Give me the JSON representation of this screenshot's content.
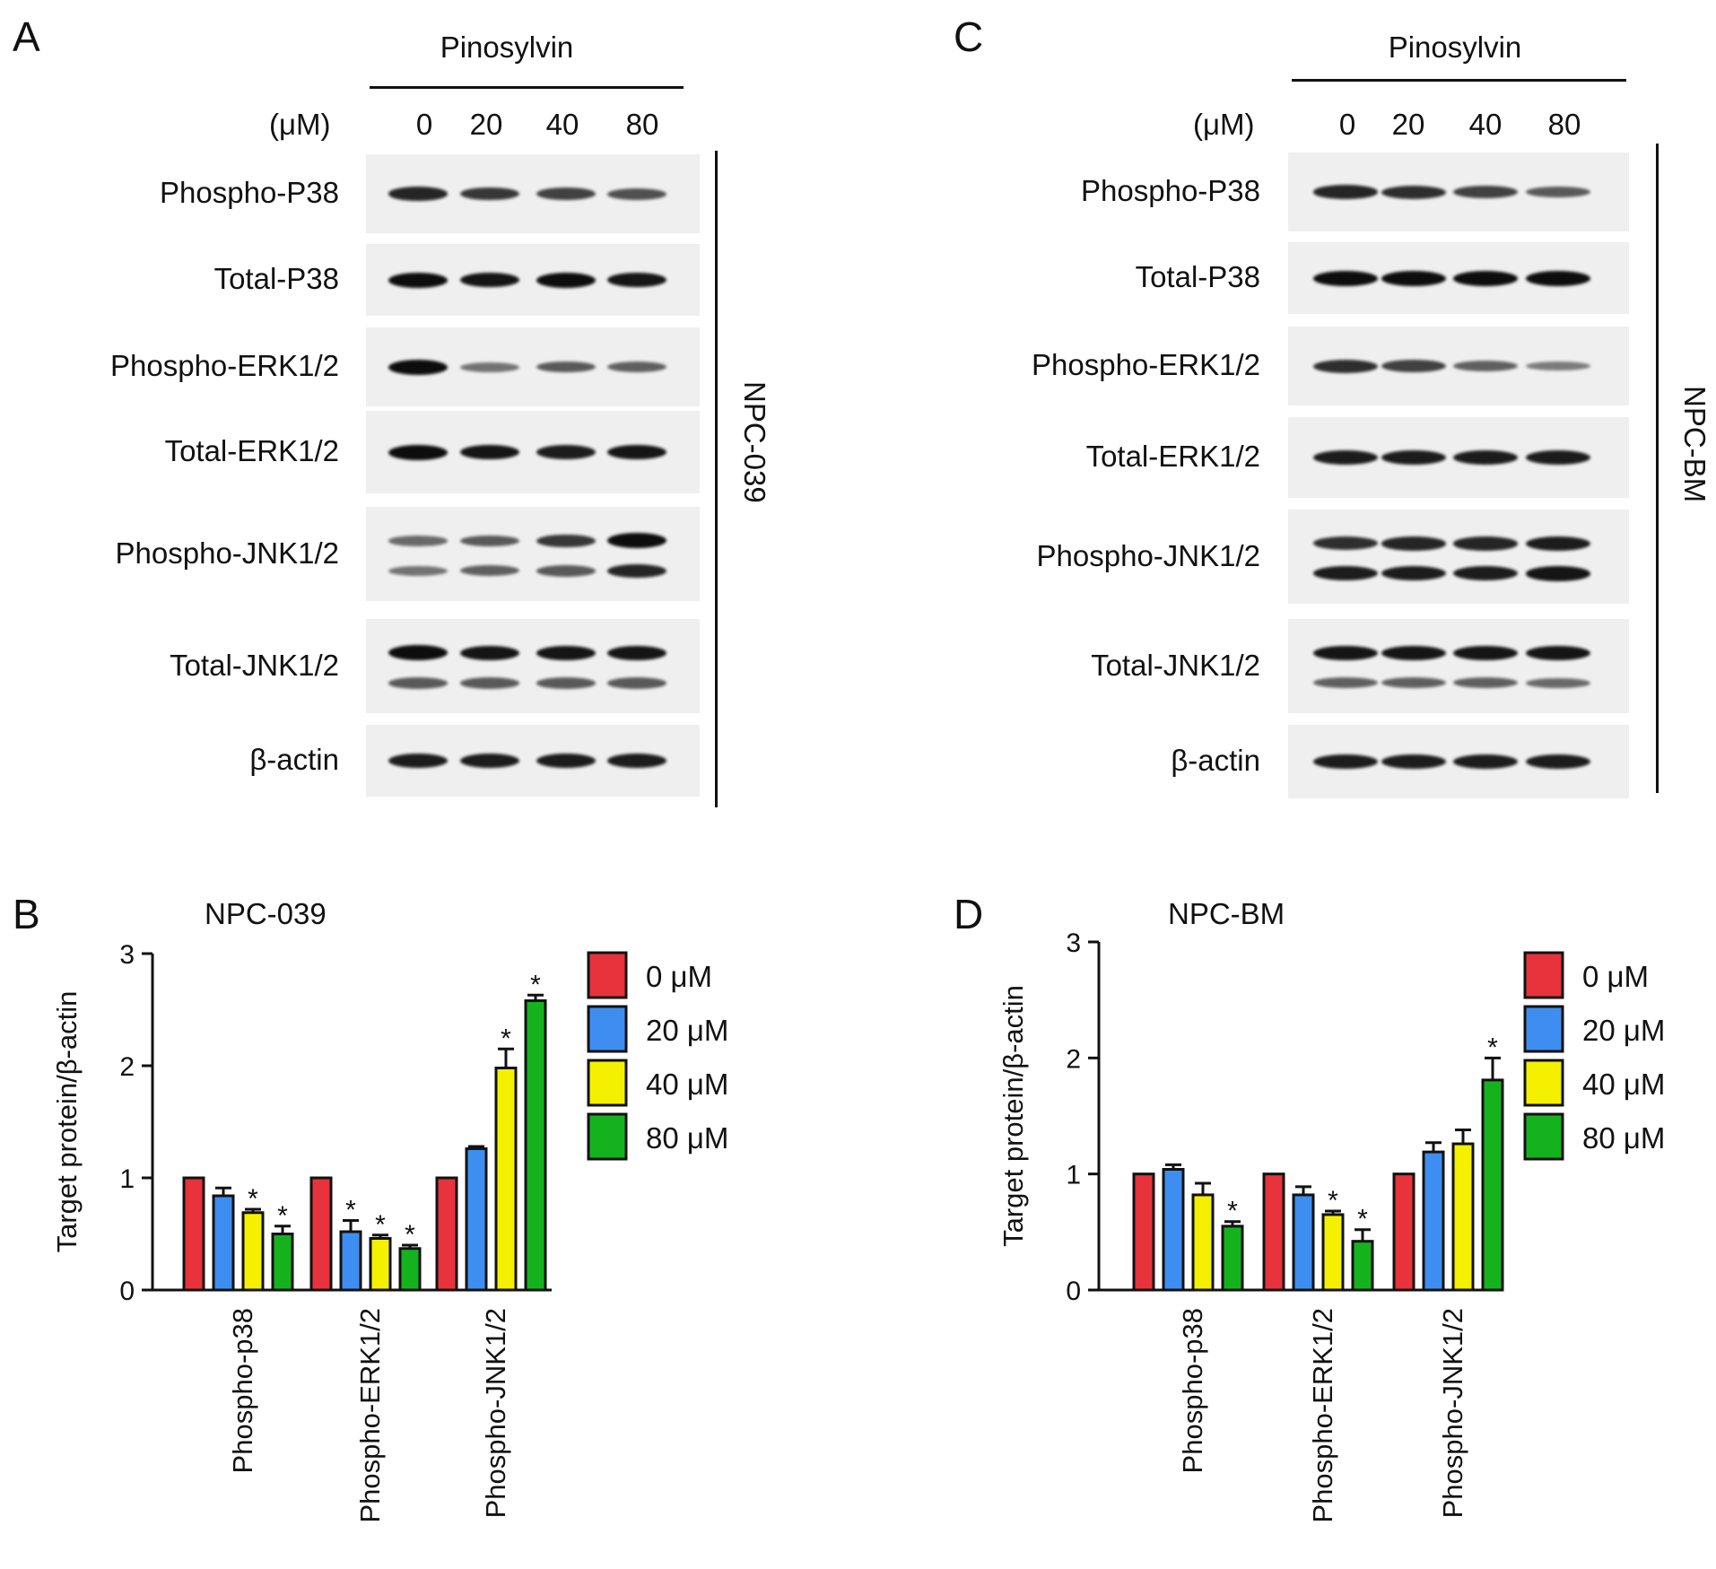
{
  "panels": [
    {
      "letter": "A",
      "treatment": "Pinosylvin",
      "concentration_label": "(μM)",
      "doses": [
        "0",
        "20",
        "40",
        "80"
      ],
      "cell_line": "NPC-039",
      "rows": [
        {
          "label": "Phospho-P38",
          "bands": [
            [
              0.85
            ],
            [
              0.75
            ],
            [
              0.7
            ],
            [
              0.6
            ]
          ]
        },
        {
          "label": "Total-P38",
          "bands": [
            [
              1.0
            ],
            [
              0.95
            ],
            [
              1.0
            ],
            [
              0.95
            ]
          ]
        },
        {
          "label": "Phospho-ERK1/2",
          "bands": [
            [
              1.0
            ],
            [
              0.4
            ],
            [
              0.55
            ],
            [
              0.5
            ]
          ]
        },
        {
          "label": "Total-ERK1/2",
          "bands": [
            [
              1.0
            ],
            [
              0.95
            ],
            [
              0.9
            ],
            [
              0.95
            ]
          ]
        },
        {
          "label": "Phospho-JNK1/2",
          "bands": [
            [
              0.45,
              0.4
            ],
            [
              0.55,
              0.5
            ],
            [
              0.75,
              0.55
            ],
            [
              1.0,
              0.85
            ]
          ]
        },
        {
          "label": "Total-JNK1/2",
          "bands": [
            [
              1.0,
              0.55
            ],
            [
              0.95,
              0.55
            ],
            [
              0.95,
              0.55
            ],
            [
              0.95,
              0.55
            ]
          ]
        },
        {
          "label": "β-actin",
          "bands": [
            [
              0.9
            ],
            [
              0.9
            ],
            [
              0.9
            ],
            [
              0.9
            ]
          ]
        }
      ]
    },
    {
      "letter": "C",
      "treatment": "Pinosylvin",
      "concentration_label": "(μM)",
      "doses": [
        "0",
        "20",
        "40",
        "80"
      ],
      "cell_line": "NPC-BM",
      "rows": [
        {
          "label": "Phospho-P38",
          "bands": [
            [
              0.85
            ],
            [
              0.8
            ],
            [
              0.7
            ],
            [
              0.55
            ]
          ]
        },
        {
          "label": "Total-P38",
          "bands": [
            [
              1.0
            ],
            [
              1.0
            ],
            [
              1.0
            ],
            [
              1.0
            ]
          ]
        },
        {
          "label": "Phospho-ERK1/2",
          "bands": [
            [
              0.8
            ],
            [
              0.7
            ],
            [
              0.5
            ],
            [
              0.35
            ]
          ]
        },
        {
          "label": "Total-ERK1/2",
          "bands": [
            [
              0.9
            ],
            [
              0.9
            ],
            [
              0.9
            ],
            [
              0.9
            ]
          ]
        },
        {
          "label": "Phospho-JNK1/2",
          "bands": [
            [
              0.8,
              0.9
            ],
            [
              0.85,
              0.9
            ],
            [
              0.85,
              0.9
            ],
            [
              0.9,
              0.95
            ]
          ]
        },
        {
          "label": "Total-JNK1/2",
          "bands": [
            [
              0.95,
              0.5
            ],
            [
              0.95,
              0.5
            ],
            [
              0.95,
              0.5
            ],
            [
              0.95,
              0.45
            ]
          ]
        },
        {
          "label": "β-actin",
          "bands": [
            [
              0.9
            ],
            [
              0.9
            ],
            [
              0.9
            ],
            [
              0.9
            ]
          ]
        }
      ]
    }
  ],
  "legend": [
    {
      "label": "0 μM",
      "color": "#e8323c"
    },
    {
      "label": "20 μM",
      "color": "#3d8ef0"
    },
    {
      "label": "40 μM",
      "color": "#f5f000"
    },
    {
      "label": "80 μM",
      "color": "#14b31e"
    }
  ],
  "chart_data": [
    {
      "letter": "B",
      "type": "bar",
      "title": "NPC-039",
      "ylabel": "Target protein/β-actin",
      "ylim": [
        0,
        3
      ],
      "yticks": [
        0,
        1,
        2,
        3
      ],
      "categories": [
        "Phospho-p38",
        "Phospho-ERK1/2",
        "Phospho-JNK1/2"
      ],
      "series": [
        {
          "name": "0 μM",
          "values": [
            1.0,
            1.0,
            1.0
          ],
          "errors": [
            0,
            0,
            0
          ],
          "significant": [
            false,
            false,
            false
          ]
        },
        {
          "name": "20 μM",
          "values": [
            0.84,
            0.52,
            1.26
          ],
          "errors": [
            0.07,
            0.1,
            0.02
          ],
          "significant": [
            false,
            true,
            false
          ]
        },
        {
          "name": "40 μM",
          "values": [
            0.69,
            0.46,
            1.98
          ],
          "errors": [
            0.03,
            0.03,
            0.17
          ],
          "significant": [
            true,
            true,
            true
          ]
        },
        {
          "name": "80 μM",
          "values": [
            0.5,
            0.37,
            2.58
          ],
          "errors": [
            0.07,
            0.03,
            0.05
          ],
          "significant": [
            true,
            true,
            true
          ]
        }
      ],
      "marker": "*"
    },
    {
      "letter": "D",
      "type": "bar",
      "title": "NPC-BM",
      "ylabel": "Target protein/β-actin",
      "ylim": [
        0,
        3
      ],
      "yticks": [
        0,
        1,
        2,
        3
      ],
      "categories": [
        "Phospho-p38",
        "Phospho-ERK1/2",
        "Phospho-JNK1/2"
      ],
      "series": [
        {
          "name": "0 μM",
          "values": [
            1.0,
            1.0,
            1.0
          ],
          "errors": [
            0,
            0,
            0
          ],
          "significant": [
            false,
            false,
            false
          ]
        },
        {
          "name": "20 μM",
          "values": [
            1.04,
            0.82,
            1.19
          ],
          "errors": [
            0.04,
            0.07,
            0.08
          ],
          "significant": [
            false,
            false,
            false
          ]
        },
        {
          "name": "40 μM",
          "values": [
            0.82,
            0.65,
            1.26
          ],
          "errors": [
            0.1,
            0.03,
            0.12
          ],
          "significant": [
            false,
            true,
            false
          ]
        },
        {
          "name": "80 μM",
          "values": [
            0.55,
            0.42,
            1.81
          ],
          "errors": [
            0.04,
            0.1,
            0.19
          ],
          "significant": [
            true,
            true,
            true
          ]
        }
      ],
      "marker": "*"
    }
  ]
}
